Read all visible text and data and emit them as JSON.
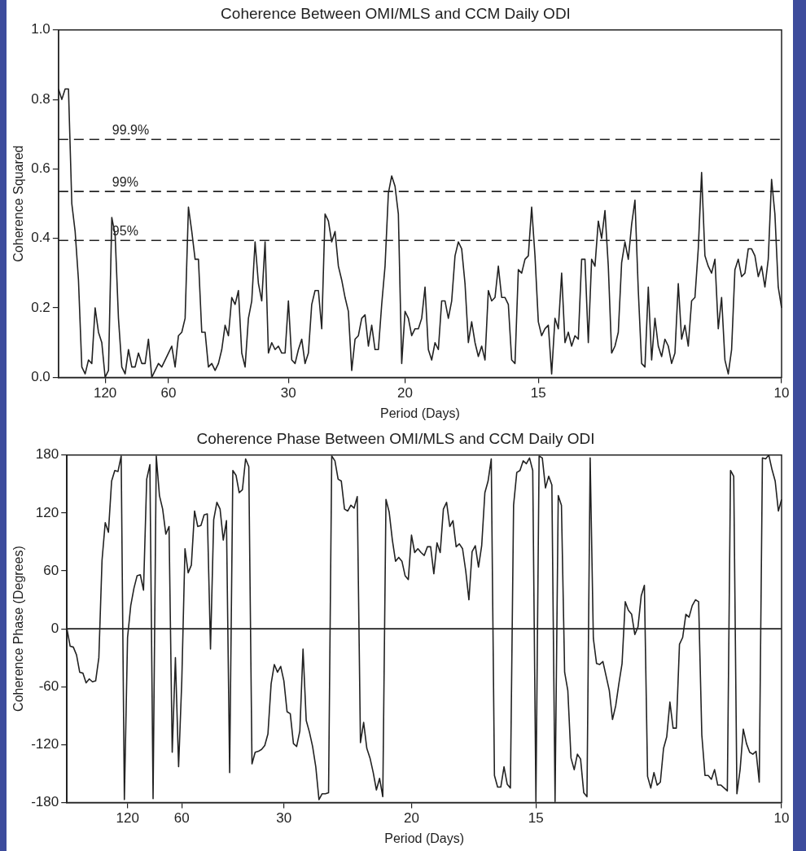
{
  "chart_data": [
    {
      "type": "line",
      "title": "Coherence Between OMI/MLS and CCM Daily ODI",
      "xlabel": "Period (Days)",
      "ylabel": "Coherence Squared",
      "color": "#222222",
      "ylim": [
        0,
        1
      ],
      "yticks": [
        {
          "value": 0,
          "label": "0.0"
        },
        0.2,
        0.4,
        0.6,
        0.8,
        {
          "value": 1,
          "label": "1.0"
        }
      ],
      "ref_lines": [
        {
          "axis": "y",
          "value": 0.685,
          "line_style": "dashed"
        },
        {
          "axis": "y",
          "value": 0.535,
          "line_style": "dashed"
        },
        {
          "axis": "y",
          "value": 0.394,
          "line_style": "dashed"
        }
      ],
      "annotations": [
        "99.9%",
        "99%",
        "95%"
      ],
      "categories": [
        null,
        null,
        null,
        null,
        null,
        null,
        null,
        null,
        null,
        null,
        null,
        null,
        null,
        null,
        "120",
        null,
        null,
        null,
        null,
        null,
        null,
        null,
        null,
        null,
        null,
        null,
        null,
        null,
        null,
        null,
        null,
        null,
        null,
        "60",
        null,
        null,
        null,
        null,
        null,
        null,
        null,
        null,
        null,
        null,
        null,
        null,
        null,
        null,
        null,
        null,
        null,
        null,
        null,
        null,
        null,
        null,
        null,
        null,
        null,
        null,
        null,
        null,
        null,
        null,
        null,
        null,
        null,
        null,
        null,
        "30",
        null,
        null,
        null,
        null,
        null,
        null,
        null,
        null,
        null,
        null,
        null,
        null,
        null,
        null,
        null,
        null,
        null,
        null,
        null,
        null,
        null,
        null,
        null,
        null,
        null,
        null,
        null,
        null,
        null,
        null,
        null,
        null,
        null,
        null,
        "20",
        null,
        null,
        null,
        null,
        null,
        null,
        null,
        null,
        null,
        null,
        null,
        null,
        null,
        null,
        null,
        null,
        null,
        null,
        null,
        null,
        null,
        null,
        null,
        null,
        null,
        null,
        null,
        null,
        null,
        null,
        null,
        null,
        null,
        null,
        null,
        null,
        null,
        null,
        null,
        "15",
        null,
        null,
        null,
        null,
        null,
        null,
        null,
        null,
        null,
        null,
        null,
        null,
        null,
        null,
        null,
        null,
        null,
        null,
        null,
        null,
        null,
        null,
        null,
        null,
        null,
        null,
        null,
        null,
        null,
        null,
        null,
        null,
        null,
        null,
        null,
        null,
        null,
        null,
        null,
        null,
        null,
        null,
        null,
        null,
        null,
        null,
        null,
        null,
        null,
        null,
        null,
        null,
        null,
        null,
        null,
        null,
        null,
        null,
        null,
        null,
        null,
        null,
        null,
        null,
        null,
        null,
        null,
        null,
        null,
        null,
        null,
        null,
        "10"
      ],
      "values": [
        0.83,
        0.8,
        0.83,
        0.83,
        0.5,
        0.42,
        0.28,
        0.03,
        0.01,
        0.05,
        0.04,
        0.2,
        0.13,
        0.1,
        0,
        0.02,
        0.46,
        0.41,
        0.17,
        0.03,
        0.01,
        0.08,
        0.03,
        0.03,
        0.07,
        0.04,
        0.04,
        0.11,
        0,
        0.02,
        0.04,
        0.03,
        0.05,
        0.07,
        0.09,
        0.03,
        0.12,
        0.13,
        0.17,
        0.49,
        0.42,
        0.34,
        0.34,
        0.13,
        0.13,
        0.03,
        0.04,
        0.02,
        0.04,
        0.08,
        0.15,
        0.12,
        0.23,
        0.21,
        0.25,
        0.07,
        0.03,
        0.17,
        0.22,
        0.39,
        0.27,
        0.22,
        0.39,
        0.07,
        0.1,
        0.08,
        0.09,
        0.07,
        0.07,
        0.22,
        0.05,
        0.04,
        0.08,
        0.11,
        0.04,
        0.07,
        0.21,
        0.25,
        0.25,
        0.14,
        0.47,
        0.45,
        0.39,
        0.42,
        0.32,
        0.28,
        0.23,
        0.19,
        0.02,
        0.11,
        0.12,
        0.17,
        0.18,
        0.09,
        0.15,
        0.08,
        0.08,
        0.21,
        0.32,
        0.53,
        0.58,
        0.55,
        0.47,
        0.04,
        0.19,
        0.17,
        0.12,
        0.14,
        0.14,
        0.17,
        0.26,
        0.08,
        0.05,
        0.1,
        0.08,
        0.22,
        0.22,
        0.17,
        0.22,
        0.35,
        0.39,
        0.37,
        0.27,
        0.1,
        0.16,
        0.1,
        0.06,
        0.09,
        0.05,
        0.25,
        0.22,
        0.23,
        0.32,
        0.23,
        0.23,
        0.21,
        0.05,
        0.04,
        0.31,
        0.3,
        0.34,
        0.35,
        0.49,
        0.35,
        0.16,
        0.12,
        0.14,
        0.15,
        0.01,
        0.17,
        0.14,
        0.3,
        0.1,
        0.13,
        0.09,
        0.12,
        0.11,
        0.34,
        0.34,
        0.1,
        0.34,
        0.32,
        0.45,
        0.4,
        0.48,
        0.32,
        0.07,
        0.09,
        0.13,
        0.33,
        0.39,
        0.34,
        0.44,
        0.51,
        0.25,
        0.04,
        0.03,
        0.26,
        0.05,
        0.17,
        0.09,
        0.06,
        0.11,
        0.09,
        0.04,
        0.07,
        0.27,
        0.11,
        0.15,
        0.09,
        0.22,
        0.23,
        0.37,
        0.59,
        0.35,
        0.32,
        0.3,
        0.34,
        0.14,
        0.23,
        0.05,
        0.01,
        0.08,
        0.31,
        0.34,
        0.29,
        0.3,
        0.37,
        0.37,
        0.35,
        0.29,
        0.32,
        0.26,
        0.34,
        0.57,
        0.47,
        0.26,
        0.2
      ]
    },
    {
      "type": "line",
      "title": "Coherence Phase Between OMI/MLS and CCM Daily ODI",
      "xlabel": "Period (Days)",
      "ylabel": "Coherence Phase (Degrees)",
      "color": "#222222",
      "ylim": [
        -180,
        180
      ],
      "yticks": [
        -180,
        -120,
        -60,
        0,
        60,
        120,
        180
      ],
      "ref_lines": [
        {
          "axis": "y",
          "value": 0,
          "line_style": "solid"
        }
      ],
      "categories": [
        null,
        null,
        null,
        null,
        null,
        null,
        null,
        null,
        null,
        null,
        null,
        null,
        null,
        null,
        null,
        null,
        null,
        null,
        null,
        "120",
        null,
        null,
        null,
        null,
        null,
        null,
        null,
        null,
        null,
        null,
        null,
        null,
        null,
        null,
        null,
        null,
        "60",
        null,
        null,
        null,
        null,
        null,
        null,
        null,
        null,
        null,
        null,
        null,
        null,
        null,
        null,
        null,
        null,
        null,
        null,
        null,
        null,
        null,
        null,
        null,
        null,
        null,
        null,
        null,
        null,
        null,
        null,
        null,
        "30",
        null,
        null,
        null,
        null,
        null,
        null,
        null,
        null,
        null,
        null,
        null,
        null,
        null,
        null,
        null,
        null,
        null,
        null,
        null,
        null,
        null,
        null,
        null,
        null,
        null,
        null,
        null,
        null,
        null,
        null,
        null,
        null,
        null,
        null,
        null,
        null,
        null,
        null,
        null,
        "20",
        null,
        null,
        null,
        null,
        null,
        null,
        null,
        null,
        null,
        null,
        null,
        null,
        null,
        null,
        null,
        null,
        null,
        null,
        null,
        null,
        null,
        null,
        null,
        null,
        null,
        null,
        null,
        null,
        null,
        null,
        null,
        null,
        null,
        null,
        null,
        null,
        null,
        null,
        "15",
        null,
        null,
        null,
        null,
        null,
        null,
        null,
        null,
        null,
        null,
        null,
        null,
        null,
        null,
        null,
        null,
        null,
        null,
        null,
        null,
        null,
        null,
        null,
        null,
        null,
        null,
        null,
        null,
        null,
        null,
        null,
        null,
        null,
        null,
        null,
        null,
        null,
        null,
        null,
        null,
        null,
        null,
        null,
        null,
        null,
        null,
        null,
        null,
        null,
        null,
        null,
        null,
        null,
        null,
        null,
        null,
        null,
        null,
        null,
        null,
        null,
        null,
        null,
        null,
        null,
        null,
        null,
        null,
        null,
        null,
        null,
        null,
        null,
        null,
        null,
        null,
        "10"
      ],
      "values": [
        0,
        -18,
        -19,
        -27,
        -45,
        -46,
        -56,
        -52,
        -55,
        -54,
        -30,
        71,
        110,
        100,
        153,
        164,
        163,
        179,
        -177,
        -9,
        24,
        42,
        55,
        56,
        40,
        155,
        170,
        -176,
        179,
        138,
        124,
        98,
        106,
        -128,
        -30,
        -143,
        -54,
        83,
        58,
        66,
        122,
        106,
        107,
        118,
        119,
        -21,
        113,
        131,
        124,
        92,
        112,
        -149,
        164,
        159,
        141,
        144,
        176,
        168,
        -140,
        -128,
        -127,
        -125,
        -121,
        -109,
        -57,
        -37,
        -45,
        -39,
        -54,
        -86,
        -88,
        -119,
        -122,
        -106,
        -21,
        -95,
        -107,
        -122,
        -143,
        -177,
        -171,
        -171,
        -170,
        179,
        174,
        155,
        153,
        124,
        122,
        128,
        125,
        137,
        -118,
        -97,
        -124,
        -134,
        -149,
        -167,
        -155,
        -174,
        134,
        121,
        92,
        70,
        74,
        70,
        55,
        51,
        97,
        79,
        83,
        79,
        76,
        85,
        85,
        57,
        89,
        79,
        124,
        131,
        106,
        112,
        85,
        88,
        83,
        60,
        30,
        80,
        86,
        64,
        86,
        141,
        153,
        176,
        -152,
        -164,
        -164,
        -143,
        -161,
        -165,
        128,
        162,
        164,
        174,
        171,
        177,
        164,
        -179,
        179,
        177,
        146,
        158,
        149,
        -179,
        138,
        128,
        -45,
        -64,
        -134,
        -146,
        -130,
        -135,
        -170,
        -174,
        177,
        -10,
        -36,
        -37,
        -34,
        -49,
        -64,
        -94,
        -80,
        -57,
        -36,
        28,
        19,
        15,
        -6,
        2,
        34,
        45,
        -153,
        -165,
        -149,
        -162,
        -159,
        -124,
        -112,
        -76,
        -103,
        -103,
        -16,
        -9,
        15,
        12,
        24,
        30,
        28,
        -110,
        -152,
        -152,
        -156,
        -146,
        -162,
        -162,
        -165,
        -168,
        164,
        158,
        -171,
        -146,
        -104,
        -119,
        -128,
        -130,
        -127,
        -159,
        177,
        176,
        180,
        165,
        153,
        122,
        134
      ]
    }
  ]
}
